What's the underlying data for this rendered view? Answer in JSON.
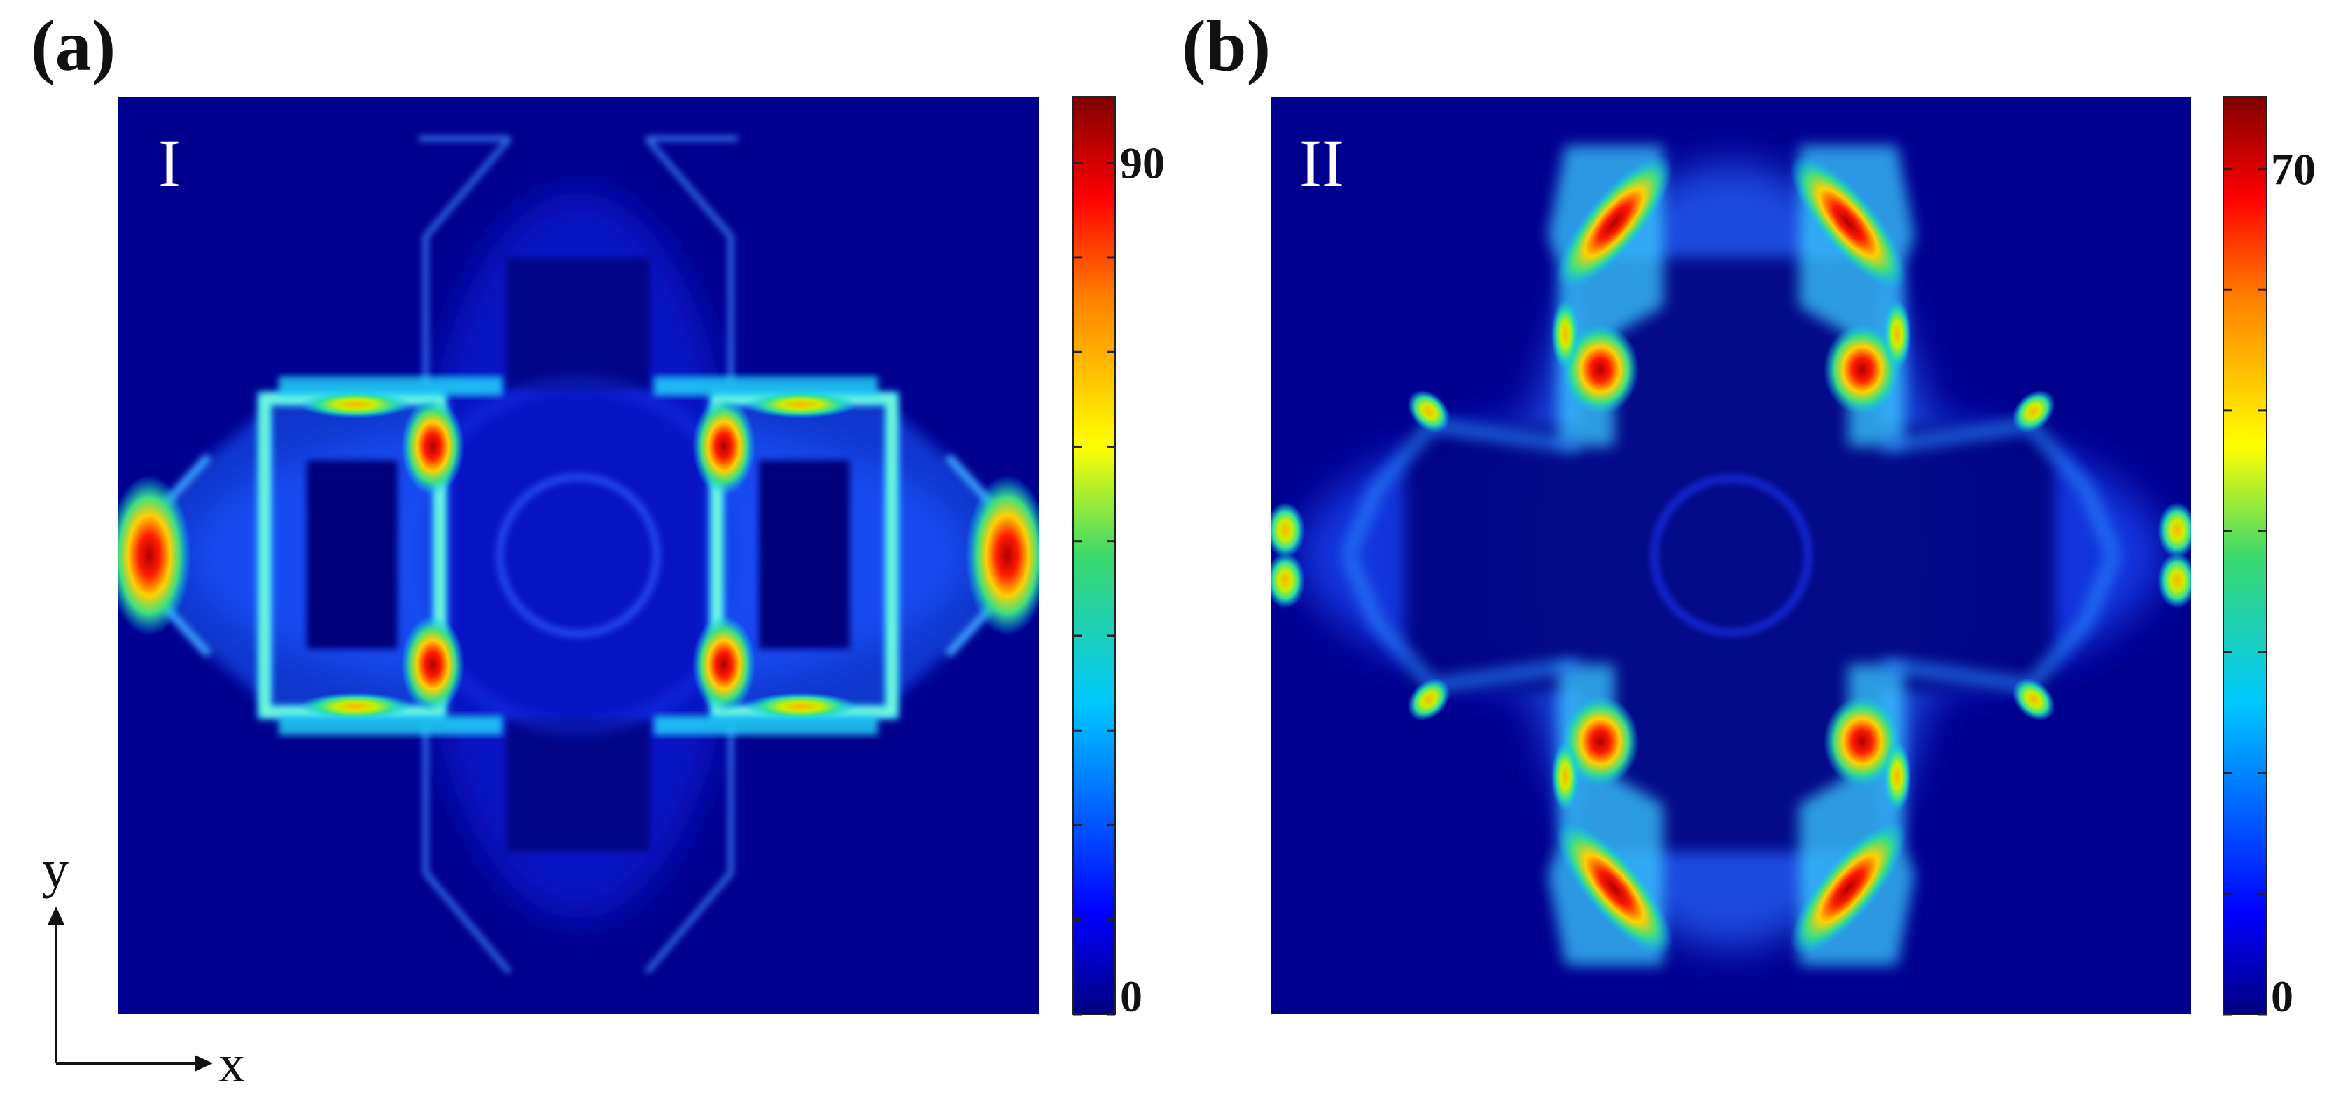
{
  "chart_data": [
    {
      "type": "heatmap",
      "panel_label": "(a)",
      "mode_label": "I",
      "colormap": "jet",
      "colorbar": {
        "min": 0,
        "max": 97,
        "tick_labels": [
          {
            "value": 90,
            "label": "90"
          },
          {
            "value": 0,
            "label": "0"
          }
        ]
      }
    },
    {
      "type": "heatmap",
      "panel_label": "(b)",
      "mode_label": "II",
      "colormap": "jet",
      "colorbar": {
        "min": 0,
        "max": 76,
        "tick_labels": [
          {
            "value": 70,
            "label": "70"
          },
          {
            "value": 0,
            "label": "0"
          }
        ]
      }
    }
  ],
  "axes_indicator": {
    "x_label": "x",
    "y_label": "y"
  },
  "colors": {
    "background": "#00008f",
    "jet_low": "#00007f",
    "jet_high": "#800000"
  }
}
